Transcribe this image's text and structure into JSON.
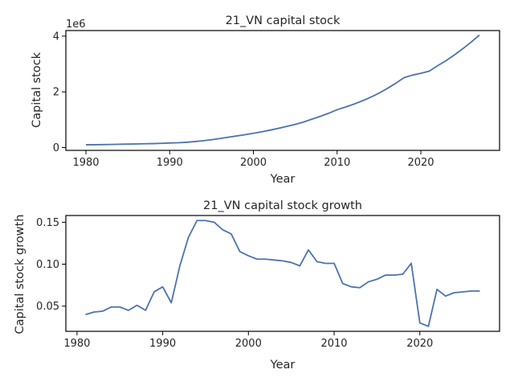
{
  "chart_data": [
    {
      "type": "line",
      "title": "21_VN capital stock",
      "xlabel": "Year",
      "ylabel": "Capital stock",
      "offset_text": "1e6",
      "xlim": [
        1977.6,
        2029.4
      ],
      "ylim": [
        -0.1,
        4.2
      ],
      "y_scale_multiplier": 1000000,
      "xticks": [
        1980,
        1990,
        2000,
        2010,
        2020
      ],
      "xtick_labels": [
        "1980",
        "1990",
        "2000",
        "2010",
        "2020"
      ],
      "yticks": [
        0,
        2,
        4
      ],
      "ytick_labels": [
        "0",
        "2",
        "4"
      ],
      "grid": false,
      "series": [
        {
          "color": "#4c72b0",
          "x": [
            1980,
            1981,
            1982,
            1983,
            1984,
            1985,
            1986,
            1987,
            1988,
            1989,
            1990,
            1991,
            1992,
            1993,
            1994,
            1995,
            1996,
            1997,
            1998,
            1999,
            2000,
            2001,
            2002,
            2003,
            2004,
            2005,
            2006,
            2007,
            2008,
            2009,
            2010,
            2011,
            2012,
            2013,
            2014,
            2015,
            2016,
            2017,
            2018,
            2019,
            2020,
            2021,
            2022,
            2023,
            2024,
            2025,
            2026,
            2027
          ],
          "y": [
            0.1,
            0.104,
            0.108,
            0.113,
            0.119,
            0.125,
            0.131,
            0.138,
            0.144,
            0.153,
            0.165,
            0.174,
            0.191,
            0.215,
            0.246,
            0.283,
            0.326,
            0.372,
            0.418,
            0.463,
            0.512,
            0.566,
            0.627,
            0.692,
            0.762,
            0.836,
            0.918,
            1.022,
            1.123,
            1.234,
            1.359,
            1.454,
            1.56,
            1.675,
            1.807,
            1.953,
            2.124,
            2.308,
            2.513,
            2.6,
            2.667,
            2.743,
            2.937,
            3.117,
            3.323,
            3.546,
            3.783,
            4.041
          ]
        }
      ]
    },
    {
      "type": "line",
      "title": "21_VN capital stock growth",
      "xlabel": "Year",
      "ylabel": "Capital stock growth",
      "xlim": [
        1978.7,
        2029.3
      ],
      "ylim": [
        0.02,
        0.158
      ],
      "xticks": [
        1980,
        1990,
        2000,
        2010,
        2020
      ],
      "xtick_labels": [
        "1980",
        "1990",
        "2000",
        "2010",
        "2020"
      ],
      "yticks": [
        0.05,
        0.1,
        0.15
      ],
      "ytick_labels": [
        "0.05",
        "0.10",
        "0.15"
      ],
      "grid": false,
      "series": [
        {
          "color": "#4c72b0",
          "x": [
            1981,
            1982,
            1983,
            1984,
            1985,
            1986,
            1987,
            1988,
            1989,
            1990,
            1991,
            1992,
            1993,
            1994,
            1995,
            1996,
            1997,
            1998,
            1999,
            2000,
            2001,
            2002,
            2003,
            2004,
            2005,
            2006,
            2007,
            2008,
            2009,
            2010,
            2011,
            2012,
            2013,
            2014,
            2015,
            2016,
            2017,
            2018,
            2019,
            2020,
            2021,
            2022,
            2023,
            2024,
            2025,
            2026,
            2027
          ],
          "y": [
            0.04,
            0.043,
            0.044,
            0.049,
            0.049,
            0.045,
            0.051,
            0.045,
            0.067,
            0.073,
            0.054,
            0.098,
            0.132,
            0.152,
            0.152,
            0.15,
            0.141,
            0.136,
            0.115,
            0.11,
            0.106,
            0.106,
            0.105,
            0.104,
            0.102,
            0.098,
            0.117,
            0.103,
            0.101,
            0.101,
            0.077,
            0.073,
            0.072,
            0.079,
            0.082,
            0.087,
            0.087,
            0.088,
            0.101,
            0.03,
            0.026,
            0.07,
            0.062,
            0.066,
            0.067,
            0.068,
            0.068
          ]
        }
      ]
    }
  ]
}
